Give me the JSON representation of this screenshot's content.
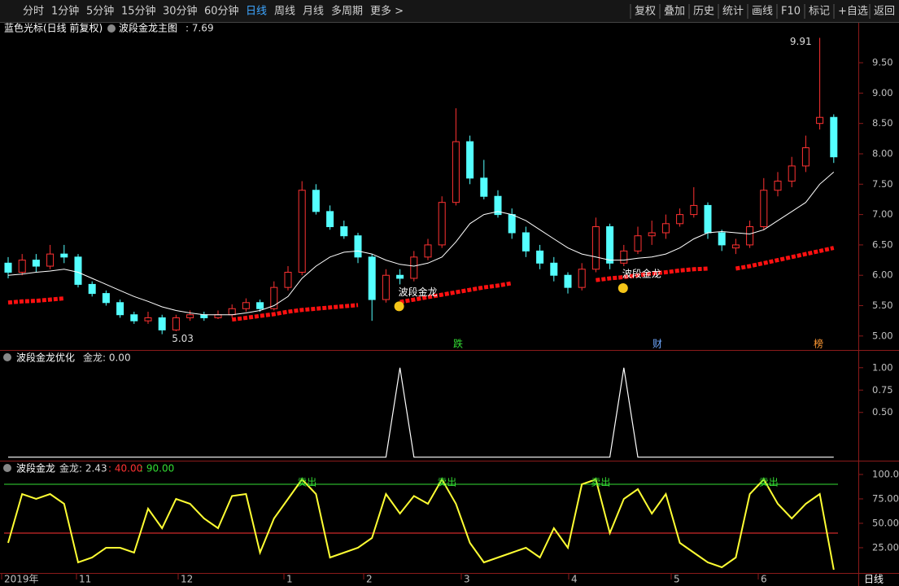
{
  "toolbar": {
    "left": [
      "分时",
      "1分钟",
      "5分钟",
      "15分钟",
      "30分钟",
      "60分钟",
      "日线",
      "周线",
      "月线",
      "多周期",
      "更多 >"
    ],
    "selected": "日线",
    "right": [
      "复权",
      "叠加",
      "历史",
      "统计",
      "画线",
      "F10",
      "标记",
      "+自选",
      "返回"
    ]
  },
  "chart_data": [
    {
      "type": "candlestick",
      "title": "蓝色光标(日线 前复权)",
      "indicator": "波段金龙主图",
      "indicator_value": ": 7.69",
      "open": [
        6.2,
        6.05,
        6.25,
        6.15,
        6.35,
        6.3,
        5.85,
        5.7,
        5.55,
        5.35,
        5.25,
        5.3,
        5.1,
        5.3,
        5.35,
        5.3,
        5.35,
        5.45,
        5.55,
        5.45,
        5.8,
        6.05,
        7.4,
        7.05,
        6.8,
        6.65,
        6.3,
        5.6,
        6.0,
        5.95,
        6.3,
        6.5,
        7.2,
        8.2,
        7.6,
        7.3,
        7.0,
        6.7,
        6.4,
        6.2,
        6.0,
        5.8,
        6.1,
        6.8,
        6.2,
        6.4,
        6.65,
        6.7,
        6.85,
        7.0,
        7.15,
        6.7,
        6.45,
        6.5,
        6.8,
        7.4,
        7.55,
        7.8,
        8.5,
        8.6
      ],
      "high": [
        6.3,
        6.35,
        6.35,
        6.5,
        6.5,
        6.35,
        5.9,
        5.75,
        5.6,
        5.4,
        5.4,
        5.35,
        5.35,
        5.42,
        5.4,
        5.42,
        5.52,
        5.62,
        5.6,
        5.9,
        6.15,
        7.55,
        7.5,
        7.15,
        6.9,
        6.7,
        6.35,
        6.1,
        6.1,
        6.4,
        6.6,
        7.3,
        8.75,
        8.3,
        7.9,
        7.4,
        7.1,
        6.8,
        6.5,
        6.3,
        6.05,
        6.2,
        6.95,
        6.85,
        6.5,
        6.8,
        6.9,
        7.0,
        7.1,
        7.45,
        7.2,
        6.75,
        6.6,
        6.9,
        7.6,
        7.7,
        7.95,
        8.3,
        9.91,
        8.65
      ],
      "low": [
        5.95,
        6.0,
        6.05,
        6.1,
        6.2,
        5.8,
        5.65,
        5.5,
        5.3,
        5.2,
        5.2,
        5.03,
        5.08,
        5.25,
        5.25,
        5.28,
        5.3,
        5.4,
        5.4,
        5.42,
        5.75,
        6.0,
        7.0,
        6.75,
        6.6,
        6.2,
        5.25,
        5.55,
        5.85,
        5.9,
        6.25,
        6.45,
        7.15,
        7.5,
        7.25,
        6.95,
        6.6,
        6.3,
        6.1,
        5.9,
        5.7,
        5.75,
        6.05,
        6.1,
        6.15,
        6.35,
        6.5,
        6.6,
        6.8,
        6.95,
        6.6,
        6.4,
        6.35,
        6.45,
        6.75,
        7.3,
        7.45,
        7.7,
        8.4,
        7.85
      ],
      "close": [
        6.05,
        6.25,
        6.15,
        6.35,
        6.3,
        5.85,
        5.7,
        5.55,
        5.35,
        5.25,
        5.3,
        5.1,
        5.3,
        5.35,
        5.3,
        5.35,
        5.45,
        5.55,
        5.45,
        5.8,
        6.05,
        7.4,
        7.05,
        6.8,
        6.65,
        6.3,
        5.6,
        6.0,
        5.95,
        6.3,
        6.5,
        7.2,
        8.2,
        7.6,
        7.3,
        7.0,
        6.7,
        6.4,
        6.2,
        6.0,
        5.8,
        6.1,
        6.8,
        6.2,
        6.4,
        6.65,
        6.7,
        6.85,
        7.0,
        7.15,
        6.7,
        6.5,
        6.5,
        6.8,
        7.4,
        7.55,
        7.8,
        8.1,
        8.6,
        7.95
      ],
      "up_color": "#ff3232",
      "down_color": "#54ffff",
      "ma": [
        6.0,
        6.02,
        6.05,
        6.07,
        6.1,
        6.05,
        5.95,
        5.85,
        5.75,
        5.65,
        5.57,
        5.48,
        5.42,
        5.38,
        5.35,
        5.35,
        5.35,
        5.38,
        5.42,
        5.5,
        5.65,
        5.95,
        6.15,
        6.3,
        6.38,
        6.4,
        6.35,
        6.25,
        6.18,
        6.15,
        6.2,
        6.3,
        6.55,
        6.85,
        7.0,
        7.05,
        7.0,
        6.9,
        6.75,
        6.6,
        6.45,
        6.35,
        6.3,
        6.25,
        6.25,
        6.28,
        6.3,
        6.35,
        6.45,
        6.6,
        6.7,
        6.72,
        6.7,
        6.68,
        6.75,
        6.9,
        7.05,
        7.2,
        7.5,
        7.7
      ],
      "ma_color": "#ffffff",
      "support": [
        5.55,
        5.57,
        5.58,
        5.6,
        5.62,
        null,
        null,
        null,
        null,
        null,
        null,
        null,
        null,
        null,
        null,
        null,
        5.27,
        5.3,
        5.33,
        5.36,
        5.4,
        5.43,
        5.45,
        5.47,
        5.49,
        5.51,
        null,
        null,
        5.56,
        5.6,
        5.64,
        5.68,
        5.72,
        5.76,
        5.8,
        5.83,
        5.87,
        null,
        null,
        null,
        null,
        null,
        5.92,
        5.95,
        5.97,
        6.0,
        6.03,
        6.05,
        6.08,
        6.1,
        6.11,
        null,
        6.11,
        6.15,
        6.2,
        6.25,
        6.3,
        6.35,
        6.4,
        6.45
      ],
      "support_color": "#ff1010",
      "annotations": [
        "波段金龙",
        "波段金龙"
      ],
      "markers": [
        "跌",
        "财",
        "榜"
      ],
      "ylim": [
        4.77,
        9.97
      ],
      "yticks": [
        {
          "value": 5,
          "label": "5.00"
        },
        {
          "value": 5.5,
          "label": "5.50"
        },
        {
          "value": 6,
          "label": "6.00"
        },
        {
          "value": 6.5,
          "label": "6.50"
        },
        {
          "value": 7,
          "label": "7.00"
        },
        {
          "value": 7.5,
          "label": "7.50"
        },
        {
          "value": 8,
          "label": "8.00"
        },
        {
          "value": 8.5,
          "label": "8.50"
        },
        {
          "value": 9,
          "label": "9.00"
        },
        {
          "value": 9.5,
          "label": "9.50"
        }
      ]
    },
    {
      "type": "line",
      "title": "波段金龙优化",
      "value_text": "金龙: 0.00",
      "color": "#ffffff",
      "values": [
        0,
        0,
        0,
        0,
        0,
        0,
        0,
        0,
        0,
        0,
        0,
        0,
        0,
        0,
        0,
        0,
        0,
        0,
        0,
        0,
        0,
        0,
        0,
        0,
        0,
        0,
        0,
        0,
        1,
        0,
        0,
        0,
        0,
        0,
        0,
        0,
        0,
        0,
        0,
        0,
        0,
        0,
        0,
        0,
        1,
        0,
        0,
        0,
        0,
        0,
        0,
        0,
        0,
        0,
        0,
        0,
        0,
        0,
        0,
        0
      ],
      "ylim": [
        -0.03,
        1.18
      ],
      "yticks": [
        {
          "value": 1,
          "label": "1.00"
        },
        {
          "value": 0.75,
          "label": "0.75"
        },
        {
          "value": 0.5,
          "label": "0.50"
        }
      ]
    },
    {
      "type": "line",
      "title": "波段金龙",
      "value_text": "金龙: 2.43",
      "color": "#ffff33",
      "values": [
        30,
        80,
        75,
        80,
        70,
        10,
        15,
        25,
        25,
        20,
        65,
        45,
        75,
        70,
        55,
        45,
        78,
        80,
        20,
        55,
        75,
        95,
        80,
        15,
        20,
        25,
        35,
        80,
        60,
        78,
        70,
        95,
        70,
        30,
        10,
        15,
        20,
        25,
        15,
        45,
        25,
        90,
        95,
        40,
        75,
        85,
        60,
        80,
        30,
        20,
        10,
        5,
        15,
        80,
        95,
        70,
        55,
        70,
        80,
        2.43
      ],
      "levels": [
        {
          "value": 40,
          "label": ": 40.00",
          "color": "#ff3232"
        },
        {
          "value": 90,
          "label": ": 90.00",
          "color": "#33dd33"
        }
      ],
      "signal_labels": [
        "卖出",
        "卖出",
        "卖出",
        "卖出"
      ],
      "ylim": [
        -1.7,
        113.3
      ],
      "yticks": [
        {
          "value": 100,
          "label": "100.0"
        },
        {
          "value": 75,
          "label": "75.00"
        },
        {
          "value": 50,
          "label": "50.00"
        },
        {
          "value": 25,
          "label": "25.00"
        }
      ]
    }
  ],
  "x_axis": {
    "labels": [
      "2019年",
      "11",
      "12",
      "1",
      "2",
      "3",
      "4",
      "5",
      "6"
    ],
    "period": "日线"
  }
}
